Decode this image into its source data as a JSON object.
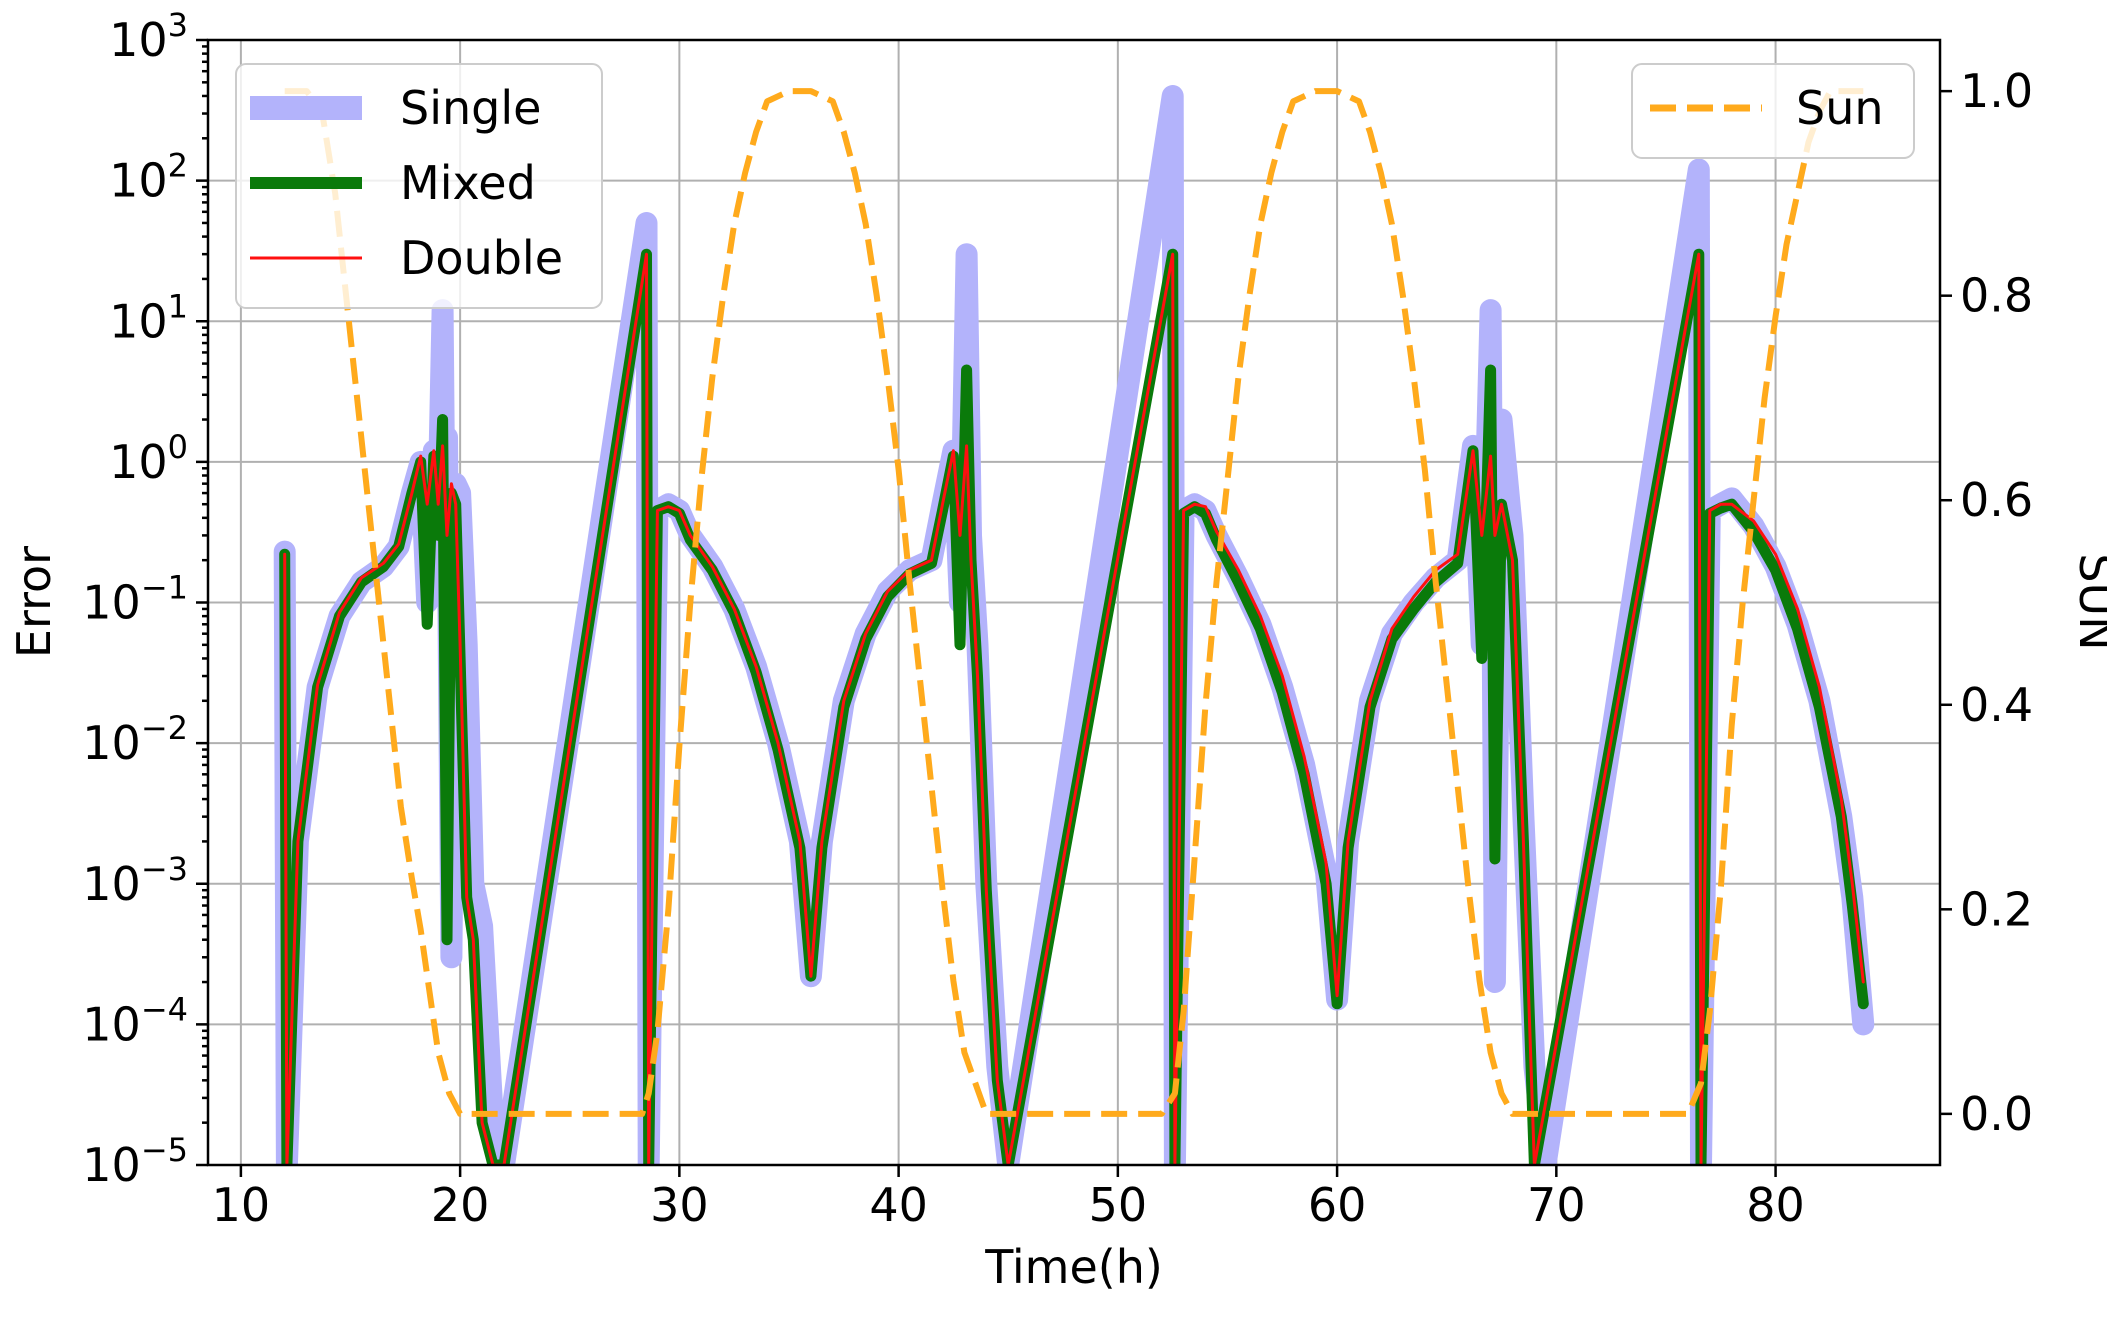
{
  "chart_data": {
    "type": "line",
    "xlabel": "Time(h)",
    "ylabel": "Error",
    "y2label": "SUN",
    "grid": true,
    "xlim": [
      8.5,
      87.5
    ],
    "xticks": [
      10,
      20,
      30,
      40,
      50,
      60,
      70,
      80
    ],
    "ylim": [
      -5,
      3
    ],
    "yscale": "log",
    "yticks": [
      {
        "base": "10",
        "exp": "3",
        "value": 3
      },
      {
        "base": "10",
        "exp": "2",
        "value": 2
      },
      {
        "base": "10",
        "exp": "1",
        "value": 1
      },
      {
        "base": "10",
        "exp": "0",
        "value": 0
      },
      {
        "base": "10",
        "exp": "−1",
        "value": -1
      },
      {
        "base": "10",
        "exp": "−2",
        "value": -2
      },
      {
        "base": "10",
        "exp": "−3",
        "value": -3
      },
      {
        "base": "10",
        "exp": "−4",
        "value": -4
      },
      {
        "base": "10",
        "exp": "−5",
        "value": -5
      }
    ],
    "y2lim": [
      -0.05,
      1.05
    ],
    "y2ticks": [
      "0.0",
      "0.2",
      "0.4",
      "0.6",
      "0.8",
      "1.0"
    ],
    "legend_left": {
      "position": "top-left",
      "entries": [
        "Single",
        "Mixed",
        "Double"
      ]
    },
    "legend_right": {
      "position": "top-right",
      "entries": [
        "Sun"
      ]
    },
    "series": [
      {
        "name": "Single",
        "axis": "left",
        "color": "#b3b3fb",
        "style": "solid-thick",
        "x": [
          12.0,
          12.1,
          12.6,
          13.5,
          14.5,
          15.5,
          16.5,
          17.2,
          17.8,
          18.2,
          18.5,
          18.8,
          19.0,
          19.2,
          19.3,
          19.4,
          19.6,
          19.8,
          20.0,
          20.3,
          20.6,
          21.0,
          21.5,
          22.0,
          28.5,
          28.6,
          29.0,
          29.5,
          30.0,
          30.5,
          31.5,
          32.5,
          33.5,
          34.5,
          35.5,
          36.0,
          36.5,
          37.5,
          38.5,
          39.5,
          40.5,
          41.5,
          42.0,
          42.5,
          42.8,
          43.1,
          43.3,
          43.6,
          44.0,
          44.5,
          45.0,
          52.5,
          52.6,
          53.0,
          53.5,
          54.0,
          54.5,
          55.5,
          56.5,
          57.5,
          58.5,
          59.5,
          60.0,
          60.5,
          61.5,
          62.5,
          63.5,
          64.5,
          65.5,
          66.2,
          66.6,
          67.0,
          67.2,
          67.5,
          68.0,
          68.5,
          69.0,
          69.5,
          76.5,
          76.6,
          77.0,
          77.5,
          78.0,
          79.0,
          80.0,
          81.0,
          82.0,
          83.0,
          83.5,
          84.0
        ],
        "y": [
          0.23,
          1e-05,
          0.002,
          0.025,
          0.08,
          0.14,
          0.18,
          0.25,
          0.6,
          1.0,
          0.1,
          1.2,
          0.4,
          12,
          0.2,
          1.5,
          0.0003,
          0.7,
          0.6,
          0.05,
          0.001,
          0.0005,
          2e-05,
          1e-05,
          50,
          1e-05,
          0.45,
          0.5,
          0.45,
          0.3,
          0.18,
          0.09,
          0.035,
          0.01,
          0.002,
          0.00022,
          0.002,
          0.02,
          0.06,
          0.12,
          0.17,
          0.2,
          0.5,
          1.2,
          0.1,
          30,
          0.3,
          0.05,
          0.001,
          5e-05,
          1e-05,
          400,
          1e-05,
          0.45,
          0.5,
          0.45,
          0.3,
          0.15,
          0.07,
          0.025,
          0.007,
          0.0012,
          0.00015,
          0.002,
          0.02,
          0.06,
          0.1,
          0.15,
          0.2,
          1.3,
          0.05,
          12,
          0.0002,
          2.0,
          0.3,
          0.003,
          5e-05,
          1e-05,
          120,
          1e-05,
          0.45,
          0.5,
          0.55,
          0.35,
          0.18,
          0.07,
          0.02,
          0.003,
          0.0008,
          0.0001
        ]
      },
      {
        "name": "Mixed",
        "axis": "left",
        "color": "#0a7a0a",
        "style": "solid-medium",
        "x": [
          12.0,
          12.1,
          12.6,
          13.5,
          14.5,
          15.5,
          16.5,
          17.2,
          17.8,
          18.2,
          18.5,
          18.8,
          19.0,
          19.2,
          19.4,
          19.6,
          19.8,
          20.0,
          20.3,
          20.6,
          21.0,
          21.5,
          22.0,
          28.5,
          28.6,
          29.0,
          29.5,
          30.0,
          30.5,
          31.5,
          32.5,
          33.5,
          34.5,
          35.5,
          36.0,
          36.5,
          37.5,
          38.5,
          39.5,
          40.5,
          41.5,
          42.0,
          42.5,
          42.8,
          43.1,
          43.3,
          43.6,
          44.0,
          44.5,
          45.0,
          52.5,
          52.6,
          53.0,
          53.5,
          54.0,
          54.5,
          55.5,
          56.5,
          57.5,
          58.5,
          59.5,
          60.0,
          60.5,
          61.5,
          62.5,
          63.5,
          64.5,
          65.5,
          66.2,
          66.6,
          67.0,
          67.2,
          67.5,
          68.0,
          68.5,
          69.0,
          76.5,
          76.6,
          77.0,
          77.5,
          78.0,
          79.0,
          80.0,
          81.0,
          82.0,
          83.0,
          83.5,
          84.0
        ],
        "y": [
          0.22,
          1e-05,
          0.002,
          0.025,
          0.08,
          0.14,
          0.18,
          0.25,
          0.6,
          1.0,
          0.07,
          1.1,
          0.3,
          2.0,
          0.0004,
          0.6,
          0.5,
          0.04,
          0.0008,
          0.0004,
          2e-05,
          1e-05,
          1e-05,
          30,
          1e-05,
          0.45,
          0.48,
          0.43,
          0.28,
          0.17,
          0.085,
          0.032,
          0.009,
          0.0018,
          0.00022,
          0.0018,
          0.018,
          0.055,
          0.11,
          0.16,
          0.19,
          0.45,
          1.1,
          0.05,
          4.5,
          0.2,
          0.03,
          0.0009,
          4e-05,
          1e-05,
          30,
          1e-05,
          0.43,
          0.48,
          0.43,
          0.28,
          0.14,
          0.065,
          0.023,
          0.006,
          0.001,
          0.00014,
          0.0018,
          0.018,
          0.055,
          0.09,
          0.14,
          0.19,
          1.2,
          0.04,
          4.5,
          0.0015,
          0.5,
          0.2,
          0.002,
          1e-05,
          30,
          1e-05,
          0.43,
          0.47,
          0.5,
          0.32,
          0.17,
          0.065,
          0.018,
          0.003,
          0.0007,
          0.00014
        ]
      },
      {
        "name": "Double",
        "axis": "left",
        "color": "#ff1010",
        "style": "solid-thin",
        "x": [
          12.0,
          12.1,
          12.6,
          13.5,
          14.5,
          15.5,
          16.5,
          17.2,
          17.8,
          18.2,
          18.5,
          18.8,
          19.0,
          19.2,
          19.4,
          19.6,
          19.8,
          20.0,
          20.3,
          20.6,
          21.0,
          21.5,
          22.0,
          28.5,
          28.6,
          29.0,
          29.5,
          30.0,
          30.5,
          31.5,
          32.5,
          33.5,
          34.5,
          35.5,
          36.0,
          36.5,
          37.5,
          38.5,
          39.5,
          40.5,
          41.5,
          42.0,
          42.5,
          42.8,
          43.1,
          43.3,
          43.6,
          44.0,
          44.5,
          45.0,
          52.5,
          52.6,
          53.0,
          53.5,
          54.0,
          54.5,
          55.5,
          56.5,
          57.5,
          58.5,
          59.5,
          60.0,
          60.5,
          61.5,
          62.5,
          63.5,
          64.5,
          65.5,
          66.2,
          66.6,
          67.0,
          67.2,
          67.5,
          68.0,
          68.5,
          69.0,
          76.5,
          76.6,
          77.0,
          77.5,
          78.0,
          79.0,
          80.0,
          81.0,
          82.0,
          83.0,
          83.5,
          84.0
        ],
        "y": [
          0.22,
          1e-05,
          0.002,
          0.026,
          0.085,
          0.15,
          0.19,
          0.26,
          0.6,
          1.1,
          0.5,
          1.2,
          0.5,
          1.3,
          0.3,
          0.7,
          0.5,
          0.05,
          0.0008,
          0.0004,
          2e-05,
          1e-05,
          1e-05,
          30,
          1e-05,
          0.45,
          0.48,
          0.45,
          0.3,
          0.18,
          0.09,
          0.035,
          0.01,
          0.002,
          0.00022,
          0.002,
          0.02,
          0.06,
          0.12,
          0.17,
          0.2,
          0.5,
          1.2,
          0.3,
          1.3,
          0.2,
          0.03,
          0.0009,
          4e-05,
          1e-05,
          30,
          1e-05,
          0.45,
          0.5,
          0.48,
          0.32,
          0.17,
          0.08,
          0.03,
          0.008,
          0.0014,
          0.00016,
          0.002,
          0.02,
          0.065,
          0.11,
          0.17,
          0.22,
          1.2,
          0.3,
          1.1,
          0.3,
          0.5,
          0.2,
          0.002,
          1e-05,
          30,
          1e-05,
          0.45,
          0.5,
          0.5,
          0.38,
          0.22,
          0.09,
          0.025,
          0.004,
          0.001,
          0.0002
        ]
      },
      {
        "name": "Sun",
        "axis": "right",
        "color": "#ffaa1c",
        "style": "dashed",
        "x": [
          12.0,
          13.0,
          13.7,
          14.3,
          14.8,
          15.3,
          15.8,
          16.3,
          16.8,
          17.3,
          17.8,
          18.2,
          18.6,
          19.0,
          19.5,
          20.0,
          22.0,
          25.0,
          27.0,
          28.3,
          28.6,
          29.0,
          29.5,
          30.0,
          30.5,
          31.0,
          31.5,
          32.0,
          32.5,
          33.0,
          33.5,
          34.0,
          35.0,
          36.0,
          37.0,
          37.5,
          38.0,
          38.5,
          39.0,
          39.5,
          40.0,
          40.5,
          41.0,
          41.5,
          42.0,
          42.5,
          43.0,
          44.0,
          46.0,
          50.0,
          52.0,
          52.6,
          53.0,
          53.5,
          54.0,
          54.5,
          55.0,
          55.5,
          56.0,
          56.5,
          57.0,
          57.5,
          58.0,
          59.0,
          60.0,
          61.0,
          61.5,
          62.0,
          62.5,
          63.0,
          63.5,
          64.0,
          64.5,
          65.0,
          65.5,
          66.0,
          66.5,
          67.0,
          67.5,
          68.0,
          70.0,
          74.0,
          76.0,
          76.6,
          77.0,
          77.5,
          78.0,
          78.5,
          79.0,
          79.5,
          80.0,
          80.5,
          81.0,
          81.5,
          82.0,
          82.5,
          83.0,
          84.0
        ],
        "y": [
          1.0,
          1.0,
          0.98,
          0.9,
          0.8,
          0.7,
          0.6,
          0.5,
          0.4,
          0.3,
          0.23,
          0.18,
          0.12,
          0.06,
          0.02,
          0.0,
          0.0,
          0.0,
          0.0,
          0.0,
          0.02,
          0.08,
          0.2,
          0.36,
          0.5,
          0.62,
          0.72,
          0.8,
          0.87,
          0.92,
          0.96,
          0.99,
          1.0,
          1.0,
          0.99,
          0.96,
          0.92,
          0.87,
          0.8,
          0.72,
          0.63,
          0.52,
          0.42,
          0.32,
          0.22,
          0.13,
          0.06,
          0.0,
          0.0,
          0.0,
          0.0,
          0.02,
          0.1,
          0.25,
          0.4,
          0.52,
          0.62,
          0.72,
          0.8,
          0.87,
          0.92,
          0.96,
          0.99,
          1.0,
          1.0,
          0.99,
          0.96,
          0.92,
          0.87,
          0.8,
          0.72,
          0.63,
          0.52,
          0.42,
          0.32,
          0.22,
          0.13,
          0.06,
          0.02,
          0.0,
          0.0,
          0.0,
          0.0,
          0.03,
          0.1,
          0.22,
          0.38,
          0.5,
          0.6,
          0.7,
          0.78,
          0.85,
          0.9,
          0.95,
          0.98,
          1.0,
          1.0,
          1.0
        ]
      }
    ]
  }
}
